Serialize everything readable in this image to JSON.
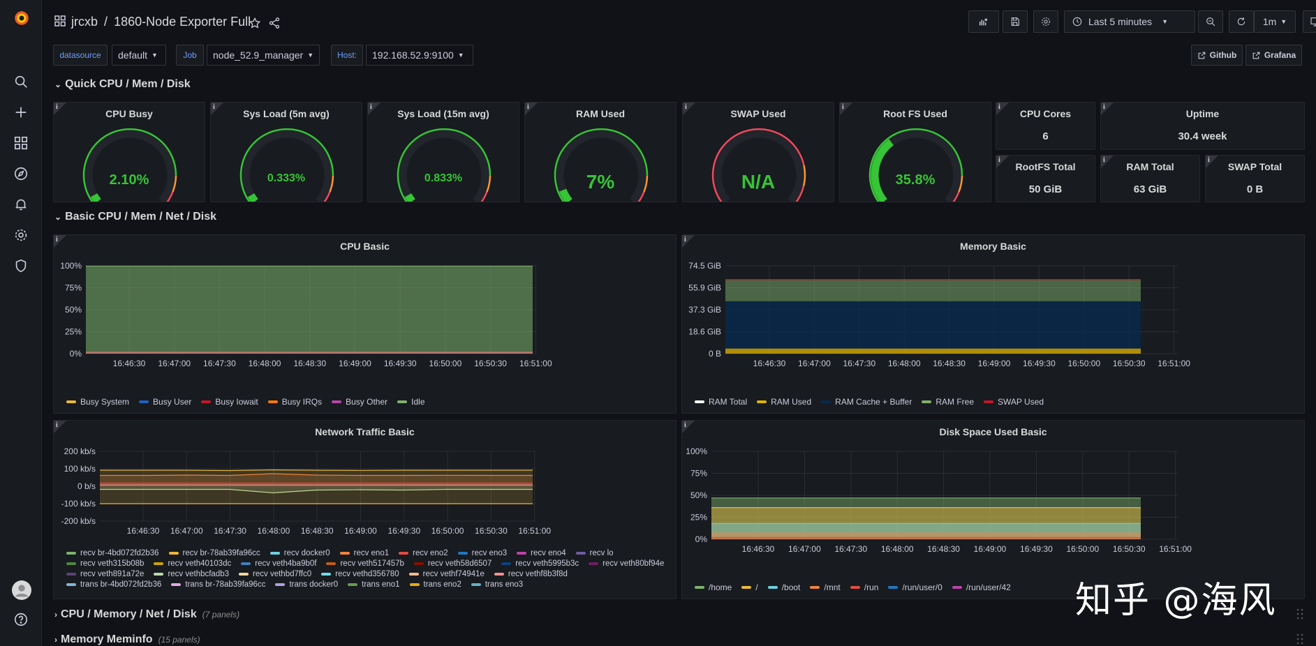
{
  "nav": {
    "breadcrumb_folder": "jrcxb",
    "breadcrumb_sep": "/",
    "dashboard_title": "1860-Node Exporter Full"
  },
  "toolbar": {
    "time_range": "Last 5 minutes",
    "refresh_interval": "1m"
  },
  "variables": [
    {
      "label": "datasource",
      "value": "default"
    },
    {
      "label": "Job",
      "value": "node_52.9_manager"
    },
    {
      "label": "Host:",
      "value": "192.168.52.9:9100"
    }
  ],
  "links": {
    "github": "Github",
    "grafana": "Grafana"
  },
  "rows": {
    "quick": "Quick CPU / Mem / Disk",
    "basic": "Basic CPU / Mem / Net / Disk",
    "cpu_mem": "CPU / Memory / Net / Disk",
    "cpu_mem_count": "(7 panels)",
    "meminfo": "Memory Meminfo",
    "meminfo_count": "(15 panels)"
  },
  "gauges": [
    {
      "title": "CPU Busy",
      "display": "2.10%",
      "level": 0.021
    },
    {
      "title": "Sys Load (5m avg)",
      "display": "0.333%",
      "level": 0.00333
    },
    {
      "title": "Sys Load (15m avg)",
      "display": "0.833%",
      "level": 0.00833
    },
    {
      "title": "RAM Used",
      "display": "7%",
      "level": 0.07
    },
    {
      "title": "SWAP Used",
      "display": "N/A",
      "level": 0
    },
    {
      "title": "Root FS Used",
      "display": "35.8%",
      "level": 0.358
    }
  ],
  "stats": {
    "cpu_cores": {
      "title": "CPU Cores",
      "value": "6"
    },
    "uptime": {
      "title": "Uptime",
      "value": "30.4 week"
    },
    "rootfs_total": {
      "title": "RootFS Total",
      "value": "50 GiB"
    },
    "ram_total": {
      "title": "RAM Total",
      "value": "63 GiB"
    },
    "swap_total": {
      "title": "SWAP Total",
      "value": "0 B"
    }
  },
  "panels": {
    "cpu_basic": "CPU Basic",
    "memory_basic": "Memory Basic",
    "network_basic": "Network Traffic Basic",
    "disk_basic": "Disk Space Used Basic"
  },
  "time_ticks": [
    "16:46:30",
    "16:47:00",
    "16:47:30",
    "16:48:00",
    "16:48:30",
    "16:49:00",
    "16:49:30",
    "16:50:00",
    "16:50:30",
    "16:51:00"
  ],
  "chart_data": [
    {
      "type": "area",
      "title": "CPU Basic",
      "y_ticks": [
        "100%",
        "75%",
        "50%",
        "25%",
        "0%"
      ],
      "ylim": [
        0,
        100
      ],
      "series": [
        {
          "name": "Busy System",
          "color": "#eab839",
          "values": [
            1,
            1,
            1,
            1,
            1,
            1,
            1,
            1,
            1,
            1,
            1
          ]
        },
        {
          "name": "Busy User",
          "color": "#1f60c4",
          "values": [
            0.6,
            0.6,
            0.6,
            0.6,
            0.6,
            0.6,
            0.6,
            0.6,
            0.6,
            0.6,
            0.6
          ]
        },
        {
          "name": "Busy Iowait",
          "color": "#c4162a",
          "values": [
            0.2,
            0.2,
            0.2,
            0.2,
            0.2,
            0.2,
            0.2,
            0.2,
            0.2,
            0.2,
            0.2
          ]
        },
        {
          "name": "Busy IRQs",
          "color": "#ff780a",
          "values": [
            0,
            0,
            0,
            0,
            0,
            0,
            0,
            0,
            0,
            0,
            0
          ]
        },
        {
          "name": "Busy Other",
          "color": "#ba43a9",
          "values": [
            0,
            0,
            0,
            0,
            0,
            0,
            0,
            0,
            0,
            0,
            0
          ]
        },
        {
          "name": "Idle",
          "color": "#7eb26d",
          "values": [
            97.9,
            97.9,
            97.9,
            97.9,
            97.9,
            97.9,
            97.9,
            97.9,
            97.9,
            97.9,
            97.9
          ]
        }
      ]
    },
    {
      "type": "area",
      "title": "Memory Basic",
      "y_ticks": [
        "74.5 GiB",
        "55.9 GiB",
        "37.3 GiB",
        "18.6 GiB",
        "0 B"
      ],
      "ylim": [
        0,
        74.5
      ],
      "series": [
        {
          "name": "RAM Total",
          "color": "#ffffff",
          "values": [
            62.8,
            62.8,
            62.8,
            62.8,
            62.8,
            62.8,
            62.8,
            62.8,
            62.8,
            62.8,
            62.8
          ]
        },
        {
          "name": "RAM Used",
          "color": "#e0b400",
          "values": [
            4.4,
            4.4,
            4.4,
            4.4,
            4.4,
            4.4,
            4.4,
            4.4,
            4.4,
            4.4,
            4.4
          ]
        },
        {
          "name": "RAM Cache + Buffer",
          "color": "#052b51",
          "values": [
            40,
            40,
            40,
            40,
            40,
            40,
            40,
            40,
            40,
            40,
            40
          ]
        },
        {
          "name": "RAM Free",
          "color": "#7eb26d",
          "values": [
            18.4,
            18.4,
            18.4,
            18.4,
            18.4,
            18.4,
            18.4,
            18.4,
            18.4,
            18.4,
            18.4
          ]
        },
        {
          "name": "SWAP Used",
          "color": "#c4162a",
          "values": [
            0,
            0,
            0,
            0,
            0,
            0,
            0,
            0,
            0,
            0,
            0
          ]
        }
      ]
    },
    {
      "type": "line",
      "title": "Network Traffic Basic",
      "y_ticks": [
        "200 kb/s",
        "100 kb/s",
        "0 b/s",
        "-100 kb/s",
        "-200 kb/s"
      ],
      "ylim": [
        -200,
        200
      ],
      "legend": [
        {
          "name": "recv br-4bd072fd2b36",
          "color": "#7eb26d"
        },
        {
          "name": "recv br-78ab39fa96cc",
          "color": "#eab839"
        },
        {
          "name": "recv docker0",
          "color": "#6ed0e0"
        },
        {
          "name": "recv eno1",
          "color": "#ef843c"
        },
        {
          "name": "recv eno2",
          "color": "#e24d42"
        },
        {
          "name": "recv eno3",
          "color": "#1f78c1"
        },
        {
          "name": "recv eno4",
          "color": "#ba43a9"
        },
        {
          "name": "recv lo",
          "color": "#705da0"
        },
        {
          "name": "recv veth315b08b",
          "color": "#508642"
        },
        {
          "name": "recv veth40103dc",
          "color": "#cca300"
        },
        {
          "name": "recv veth4ba9b0f",
          "color": "#447ebc"
        },
        {
          "name": "recv veth517457b",
          "color": "#c15c17"
        },
        {
          "name": "recv veth58d6507",
          "color": "#890f02"
        },
        {
          "name": "recv veth5995b3c",
          "color": "#0a437c"
        },
        {
          "name": "recv veth80bf94e",
          "color": "#6d1f62"
        },
        {
          "name": "recv veth891a72e",
          "color": "#584477"
        },
        {
          "name": "recv vethbcfadb3",
          "color": "#b7dbab"
        },
        {
          "name": "recv vethbd7ffc0",
          "color": "#f4d598"
        },
        {
          "name": "recv vethd356780",
          "color": "#70dbed"
        },
        {
          "name": "recv vethf74941e",
          "color": "#f9ba8f"
        },
        {
          "name": "recv vethf8b3f8d",
          "color": "#f29191"
        },
        {
          "name": "trans br-4bd072fd2b36",
          "color": "#82b5d8"
        },
        {
          "name": "trans br-78ab39fa96cc",
          "color": "#e5a8e2"
        },
        {
          "name": "trans docker0",
          "color": "#aea2e0"
        },
        {
          "name": "trans eno1",
          "color": "#629e51"
        },
        {
          "name": "trans eno2",
          "color": "#e5ac0e"
        },
        {
          "name": "trans eno3",
          "color": "#64b0c8"
        }
      ],
      "series": [
        {
          "name": "recv eno1",
          "color": "#eab839",
          "values": [
            92,
            92,
            92,
            90,
            94,
            92,
            91,
            92,
            92,
            92,
            92
          ]
        },
        {
          "name": "recv eno2",
          "color": "#ef843c",
          "values": [
            62,
            62,
            64,
            62,
            72,
            64,
            62,
            62,
            63,
            62,
            62
          ]
        },
        {
          "name": "recv eno3",
          "color": "#e24d42",
          "values": [
            18,
            18,
            18,
            18,
            18,
            18,
            18,
            18,
            18,
            18,
            18
          ]
        },
        {
          "name": "recv docker0",
          "color": "#f29191",
          "values": [
            8,
            8,
            8,
            8,
            8,
            8,
            8,
            8,
            8,
            8,
            8
          ]
        },
        {
          "name": "trans eno1",
          "color": "#b7dbab",
          "values": [
            -18,
            -18,
            -18,
            -18,
            -38,
            -22,
            -20,
            -22,
            -18,
            -18,
            -18
          ]
        },
        {
          "name": "trans eno2",
          "color": "#eab839",
          "values": [
            -100,
            -100,
            -100,
            -100,
            -100,
            -100,
            -100,
            -100,
            -100,
            -100,
            -100
          ]
        }
      ]
    },
    {
      "type": "area",
      "title": "Disk Space Used Basic",
      "y_ticks": [
        "100%",
        "75%",
        "50%",
        "25%",
        "0%"
      ],
      "ylim": [
        0,
        100
      ],
      "series": [
        {
          "name": "/home",
          "color": "#7eb26d",
          "values": [
            47,
            47,
            47,
            47,
            47,
            47,
            47,
            47,
            47,
            47,
            47
          ]
        },
        {
          "name": "/",
          "color": "#eab839",
          "values": [
            36,
            36,
            36,
            36,
            36,
            36,
            36,
            36,
            36,
            36,
            36
          ]
        },
        {
          "name": "/boot",
          "color": "#6ed0e0",
          "values": [
            18,
            18,
            18,
            18,
            18,
            18,
            18,
            18,
            18,
            18,
            18
          ]
        },
        {
          "name": "/mnt",
          "color": "#ef843c",
          "values": [
            7,
            7,
            7,
            7,
            7,
            7,
            7,
            7,
            7,
            7,
            7
          ]
        },
        {
          "name": "/run",
          "color": "#e24d42",
          "values": [
            2,
            2,
            2,
            2,
            2,
            2,
            2,
            2,
            2,
            2,
            2
          ]
        },
        {
          "name": "/run/user/0",
          "color": "#1f78c1",
          "values": [
            0,
            0,
            0,
            0,
            0,
            0,
            0,
            0,
            0,
            0,
            0
          ]
        },
        {
          "name": "/run/user/42",
          "color": "#ba43a9",
          "values": [
            0,
            0,
            0,
            0,
            0,
            0,
            0,
            0,
            0,
            0,
            0
          ]
        }
      ]
    }
  ],
  "watermark": "知乎 @海风"
}
